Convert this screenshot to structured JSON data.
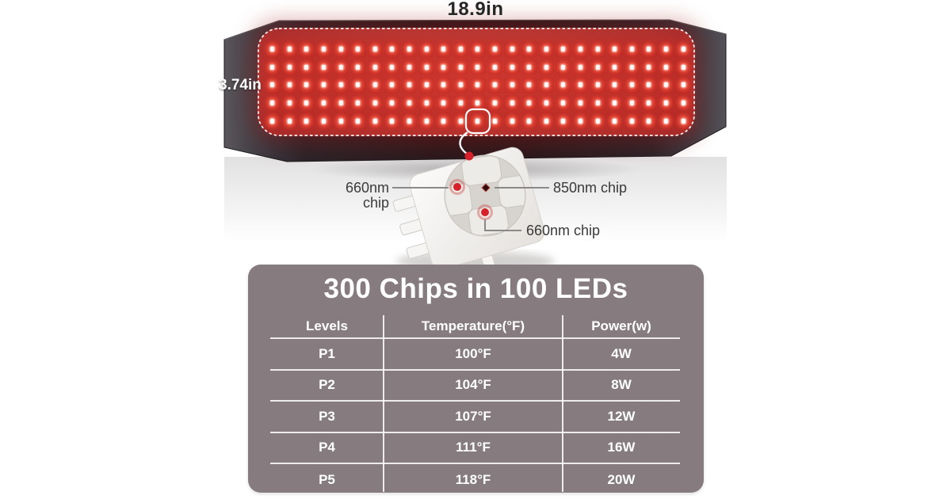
{
  "colors": {
    "accent_red": "#d6212b",
    "panel_gray": "#867c80",
    "belt_dark": "#2b2226",
    "led_glow_red": "#c23430",
    "chip_label_text": "#3a3a3a",
    "dimension_text": "#262626",
    "table_text": "#ffffff"
  },
  "dimensions": {
    "width_label": "18.9in",
    "height_label": "3.74in"
  },
  "led_grid": {
    "rows": 5,
    "cols": 25,
    "highlight_row": 4,
    "highlight_col": 12
  },
  "chip_callout": {
    "labels": [
      {
        "id": "left",
        "text": "660nm chip"
      },
      {
        "id": "right",
        "text": "850nm chip"
      },
      {
        "id": "bottom",
        "text": "660nm chip"
      }
    ]
  },
  "panel": {
    "title": "300 Chips in 100 LEDs",
    "table": {
      "headers": [
        "Levels",
        "Temperature(°F)",
        "Power(w)"
      ],
      "rows": [
        [
          "P1",
          "100°F",
          "4W"
        ],
        [
          "P2",
          "104°F",
          "8W"
        ],
        [
          "P3",
          "107°F",
          "12W"
        ],
        [
          "P4",
          "111°F",
          "16W"
        ],
        [
          "P5",
          "118°F",
          "20W"
        ]
      ]
    }
  },
  "chart_data": {
    "type": "table",
    "title": "300 Chips in 100 LEDs",
    "columns": [
      "Levels",
      "Temperature(°F)",
      "Power(w)"
    ],
    "rows": [
      [
        "P1",
        "100°F",
        "4W"
      ],
      [
        "P2",
        "104°F",
        "8W"
      ],
      [
        "P3",
        "107°F",
        "12W"
      ],
      [
        "P4",
        "111°F",
        "16W"
      ],
      [
        "P5",
        "118°F",
        "20W"
      ]
    ]
  }
}
